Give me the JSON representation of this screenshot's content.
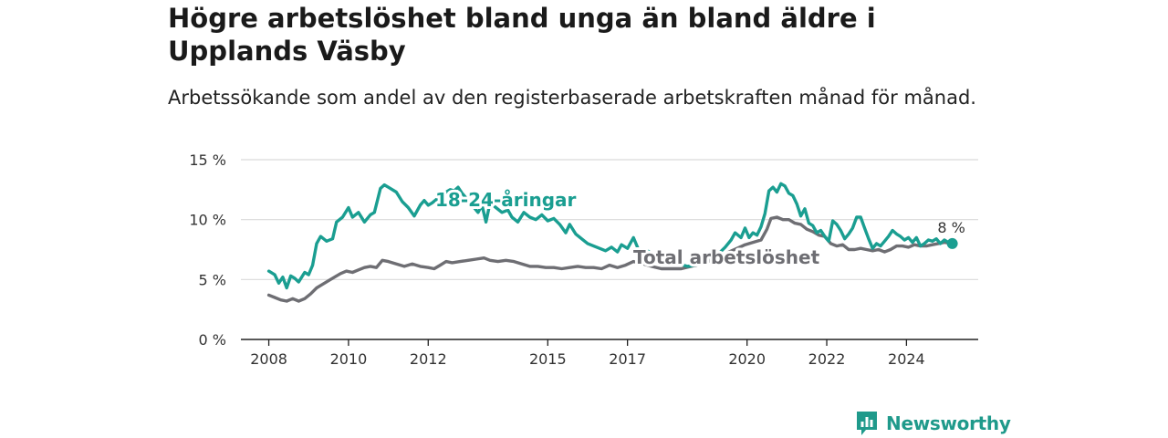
{
  "title": "Högre arbetslöshet bland unga än bland äldre i Upplands Väsby",
  "subtitle": "Arbetssökande som andel av den registerbaserade arbetskraften månad för månad.",
  "brand": {
    "name": "Newsworthy",
    "color": "#1f9a8b"
  },
  "colors": {
    "youth": "#1a9e91",
    "total": "#6e6e73",
    "grid": "#d9d9d9",
    "axis": "#222222"
  },
  "chart_data": {
    "type": "line",
    "yticks": [
      "0 %",
      "5 %",
      "10 %",
      "15 %"
    ],
    "ytick_values": [
      0,
      5,
      10,
      15
    ],
    "ylim": [
      0,
      15
    ],
    "xlim": [
      2007.3,
      2025.8
    ],
    "xticks": [
      "2008",
      "2010",
      "2012",
      "2015",
      "2017",
      "2020",
      "2022",
      "2024"
    ],
    "xtick_values": [
      2008,
      2010,
      2012,
      2015,
      2017,
      2020,
      2022,
      2024
    ],
    "grid": true,
    "end_label": "8 %",
    "series": [
      {
        "name": "18-24-åringar",
        "color": "#1a9e91",
        "points": [
          [
            2008.0,
            5.7
          ],
          [
            2008.15,
            5.4
          ],
          [
            2008.25,
            4.7
          ],
          [
            2008.35,
            5.2
          ],
          [
            2008.45,
            4.3
          ],
          [
            2008.55,
            5.3
          ],
          [
            2008.65,
            5.1
          ],
          [
            2008.75,
            4.8
          ],
          [
            2008.9,
            5.6
          ],
          [
            2009.0,
            5.4
          ],
          [
            2009.1,
            6.2
          ],
          [
            2009.2,
            8.0
          ],
          [
            2009.3,
            8.6
          ],
          [
            2009.45,
            8.2
          ],
          [
            2009.6,
            8.4
          ],
          [
            2009.7,
            9.8
          ],
          [
            2009.85,
            10.2
          ],
          [
            2010.0,
            11.0
          ],
          [
            2010.1,
            10.2
          ],
          [
            2010.25,
            10.6
          ],
          [
            2010.4,
            9.8
          ],
          [
            2010.55,
            10.4
          ],
          [
            2010.65,
            10.6
          ],
          [
            2010.8,
            12.6
          ],
          [
            2010.9,
            12.9
          ],
          [
            2011.0,
            12.7
          ],
          [
            2011.2,
            12.3
          ],
          [
            2011.35,
            11.5
          ],
          [
            2011.5,
            11.0
          ],
          [
            2011.65,
            10.3
          ],
          [
            2011.8,
            11.2
          ],
          [
            2011.9,
            11.6
          ],
          [
            2012.0,
            11.2
          ],
          [
            2012.1,
            11.4
          ],
          [
            2012.25,
            11.8
          ],
          [
            2012.4,
            12.2
          ],
          [
            2012.55,
            12.5
          ],
          [
            2012.65,
            12.4
          ],
          [
            2012.75,
            12.7
          ],
          [
            2012.85,
            12.2
          ],
          [
            2012.95,
            11.8
          ],
          [
            2013.05,
            11.5
          ],
          [
            2013.15,
            11.0
          ],
          [
            2013.25,
            10.6
          ],
          [
            2013.35,
            11.2
          ],
          [
            2013.45,
            9.8
          ],
          [
            2013.55,
            11.4
          ],
          [
            2013.7,
            11.0
          ],
          [
            2013.85,
            10.6
          ],
          [
            2014.0,
            10.8
          ],
          [
            2014.1,
            10.2
          ],
          [
            2014.25,
            9.8
          ],
          [
            2014.4,
            10.6
          ],
          [
            2014.55,
            10.2
          ],
          [
            2014.7,
            10.0
          ],
          [
            2014.85,
            10.4
          ],
          [
            2015.0,
            9.9
          ],
          [
            2015.15,
            10.1
          ],
          [
            2015.3,
            9.6
          ],
          [
            2015.45,
            8.9
          ],
          [
            2015.55,
            9.6
          ],
          [
            2015.7,
            8.8
          ],
          [
            2015.85,
            8.4
          ],
          [
            2016.0,
            8.0
          ],
          [
            2016.15,
            7.8
          ],
          [
            2016.3,
            7.6
          ],
          [
            2016.45,
            7.4
          ],
          [
            2016.6,
            7.7
          ],
          [
            2016.75,
            7.3
          ],
          [
            2016.85,
            7.9
          ],
          [
            2017.0,
            7.6
          ],
          [
            2017.15,
            8.5
          ],
          [
            2017.3,
            7.3
          ],
          [
            2017.5,
            7.4
          ],
          [
            2017.7,
            7.0
          ],
          [
            2017.9,
            6.7
          ],
          [
            2018.1,
            6.8
          ],
          [
            2018.3,
            6.3
          ],
          [
            2018.5,
            6.1
          ],
          [
            2018.7,
            6.2
          ],
          [
            2018.9,
            6.6
          ],
          [
            2019.1,
            6.9
          ],
          [
            2019.3,
            7.2
          ],
          [
            2019.45,
            7.7
          ],
          [
            2019.6,
            8.3
          ],
          [
            2019.7,
            8.9
          ],
          [
            2019.85,
            8.5
          ],
          [
            2019.95,
            9.3
          ],
          [
            2020.05,
            8.5
          ],
          [
            2020.15,
            8.9
          ],
          [
            2020.25,
            8.7
          ],
          [
            2020.35,
            9.4
          ],
          [
            2020.45,
            10.5
          ],
          [
            2020.55,
            12.4
          ],
          [
            2020.65,
            12.7
          ],
          [
            2020.75,
            12.3
          ],
          [
            2020.85,
            13.0
          ],
          [
            2020.95,
            12.8
          ],
          [
            2021.05,
            12.2
          ],
          [
            2021.15,
            12.0
          ],
          [
            2021.25,
            11.3
          ],
          [
            2021.35,
            10.3
          ],
          [
            2021.45,
            10.9
          ],
          [
            2021.55,
            9.7
          ],
          [
            2021.65,
            9.5
          ],
          [
            2021.75,
            8.9
          ],
          [
            2021.85,
            9.1
          ],
          [
            2021.95,
            8.6
          ],
          [
            2022.05,
            8.2
          ],
          [
            2022.15,
            9.9
          ],
          [
            2022.25,
            9.6
          ],
          [
            2022.35,
            9.1
          ],
          [
            2022.45,
            8.4
          ],
          [
            2022.55,
            8.8
          ],
          [
            2022.65,
            9.3
          ],
          [
            2022.75,
            10.2
          ],
          [
            2022.85,
            10.2
          ],
          [
            2022.95,
            9.3
          ],
          [
            2023.05,
            8.4
          ],
          [
            2023.15,
            7.6
          ],
          [
            2023.25,
            8.0
          ],
          [
            2023.35,
            7.8
          ],
          [
            2023.45,
            8.2
          ],
          [
            2023.55,
            8.6
          ],
          [
            2023.65,
            9.1
          ],
          [
            2023.75,
            8.8
          ],
          [
            2023.85,
            8.6
          ],
          [
            2023.95,
            8.3
          ],
          [
            2024.05,
            8.5
          ],
          [
            2024.15,
            8.1
          ],
          [
            2024.25,
            8.5
          ],
          [
            2024.35,
            7.8
          ],
          [
            2024.45,
            8.0
          ],
          [
            2024.55,
            8.3
          ],
          [
            2024.65,
            8.2
          ],
          [
            2024.75,
            8.4
          ],
          [
            2024.85,
            8.0
          ],
          [
            2024.95,
            8.3
          ],
          [
            2025.05,
            8.1
          ],
          [
            2025.15,
            8.0
          ]
        ]
      },
      {
        "name": "Total arbetslöshet",
        "color": "#6e6e73",
        "points": [
          [
            2008.0,
            3.7
          ],
          [
            2008.15,
            3.5
          ],
          [
            2008.3,
            3.3
          ],
          [
            2008.45,
            3.2
          ],
          [
            2008.6,
            3.4
          ],
          [
            2008.75,
            3.2
          ],
          [
            2008.9,
            3.4
          ],
          [
            2009.05,
            3.8
          ],
          [
            2009.2,
            4.3
          ],
          [
            2009.35,
            4.6
          ],
          [
            2009.5,
            4.9
          ],
          [
            2009.65,
            5.2
          ],
          [
            2009.8,
            5.5
          ],
          [
            2009.95,
            5.7
          ],
          [
            2010.1,
            5.6
          ],
          [
            2010.25,
            5.8
          ],
          [
            2010.4,
            6.0
          ],
          [
            2010.55,
            6.1
          ],
          [
            2010.7,
            6.0
          ],
          [
            2010.85,
            6.6
          ],
          [
            2011.0,
            6.5
          ],
          [
            2011.2,
            6.3
          ],
          [
            2011.4,
            6.1
          ],
          [
            2011.6,
            6.3
          ],
          [
            2011.8,
            6.1
          ],
          [
            2012.0,
            6.0
          ],
          [
            2012.15,
            5.9
          ],
          [
            2012.3,
            6.2
          ],
          [
            2012.45,
            6.5
          ],
          [
            2012.6,
            6.4
          ],
          [
            2012.8,
            6.5
          ],
          [
            2013.0,
            6.6
          ],
          [
            2013.2,
            6.7
          ],
          [
            2013.4,
            6.8
          ],
          [
            2013.55,
            6.6
          ],
          [
            2013.75,
            6.5
          ],
          [
            2013.95,
            6.6
          ],
          [
            2014.15,
            6.5
          ],
          [
            2014.35,
            6.3
          ],
          [
            2014.55,
            6.1
          ],
          [
            2014.75,
            6.1
          ],
          [
            2014.95,
            6.0
          ],
          [
            2015.15,
            6.0
          ],
          [
            2015.35,
            5.9
          ],
          [
            2015.55,
            6.0
          ],
          [
            2015.75,
            6.1
          ],
          [
            2015.95,
            6.0
          ],
          [
            2016.15,
            6.0
          ],
          [
            2016.35,
            5.9
          ],
          [
            2016.55,
            6.2
          ],
          [
            2016.75,
            6.0
          ],
          [
            2016.95,
            6.2
          ],
          [
            2017.15,
            6.5
          ],
          [
            2017.4,
            6.3
          ],
          [
            2017.6,
            6.1
          ],
          [
            2017.85,
            5.9
          ],
          [
            2018.1,
            5.9
          ],
          [
            2018.35,
            5.9
          ],
          [
            2018.6,
            6.1
          ],
          [
            2018.85,
            6.3
          ],
          [
            2019.1,
            6.6
          ],
          [
            2019.35,
            6.9
          ],
          [
            2019.55,
            7.3
          ],
          [
            2019.75,
            7.6
          ],
          [
            2019.95,
            7.9
          ],
          [
            2020.15,
            8.1
          ],
          [
            2020.35,
            8.3
          ],
          [
            2020.5,
            9.2
          ],
          [
            2020.6,
            10.1
          ],
          [
            2020.75,
            10.2
          ],
          [
            2020.9,
            10.0
          ],
          [
            2021.05,
            10.0
          ],
          [
            2021.2,
            9.7
          ],
          [
            2021.35,
            9.6
          ],
          [
            2021.5,
            9.2
          ],
          [
            2021.65,
            9.0
          ],
          [
            2021.8,
            8.7
          ],
          [
            2021.95,
            8.6
          ],
          [
            2022.1,
            8.0
          ],
          [
            2022.25,
            7.8
          ],
          [
            2022.4,
            7.9
          ],
          [
            2022.55,
            7.5
          ],
          [
            2022.7,
            7.5
          ],
          [
            2022.85,
            7.6
          ],
          [
            2023.0,
            7.5
          ],
          [
            2023.15,
            7.4
          ],
          [
            2023.3,
            7.5
          ],
          [
            2023.45,
            7.3
          ],
          [
            2023.6,
            7.5
          ],
          [
            2023.75,
            7.8
          ],
          [
            2023.9,
            7.8
          ],
          [
            2024.05,
            7.7
          ],
          [
            2024.2,
            7.9
          ],
          [
            2024.35,
            7.8
          ],
          [
            2024.5,
            7.8
          ],
          [
            2024.65,
            7.9
          ],
          [
            2024.8,
            8.0
          ],
          [
            2024.95,
            8.1
          ],
          [
            2025.15,
            8.0
          ]
        ]
      }
    ]
  }
}
